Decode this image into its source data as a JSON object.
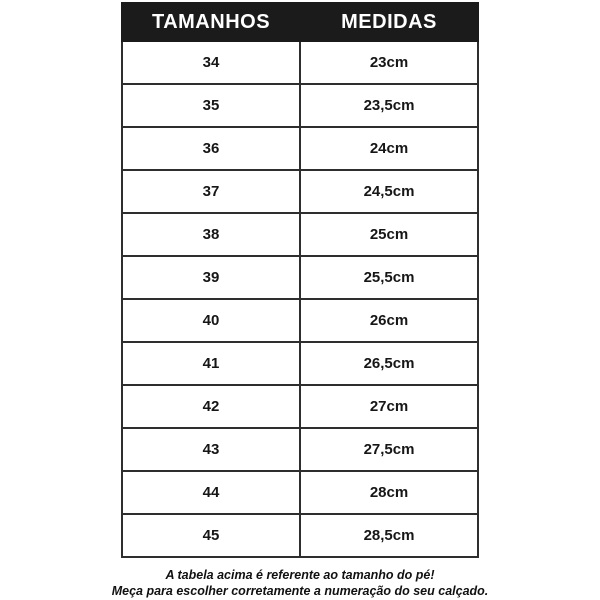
{
  "table": {
    "columns": [
      "TAMANHOS",
      "MEDIDAS"
    ],
    "rows": [
      [
        "34",
        "23cm"
      ],
      [
        "35",
        "23,5cm"
      ],
      [
        "36",
        "24cm"
      ],
      [
        "37",
        "24,5cm"
      ],
      [
        "38",
        "25cm"
      ],
      [
        "39",
        "25,5cm"
      ],
      [
        "40",
        "26cm"
      ],
      [
        "41",
        "26,5cm"
      ],
      [
        "42",
        "27cm"
      ],
      [
        "43",
        "27,5cm"
      ],
      [
        "44",
        "28cm"
      ],
      [
        "45",
        "28,5cm"
      ]
    ]
  },
  "footnote": {
    "line1": "A tabela acima é referente ao tamanho do pé!",
    "line2": "Meça para escolher corretamente a numeração do seu calçado."
  },
  "colors": {
    "header_bg": "#1b1b1b",
    "header_text": "#ffffff",
    "border": "#2e2e2e",
    "cell_text": "#161616",
    "page_bg": "#ffffff"
  }
}
